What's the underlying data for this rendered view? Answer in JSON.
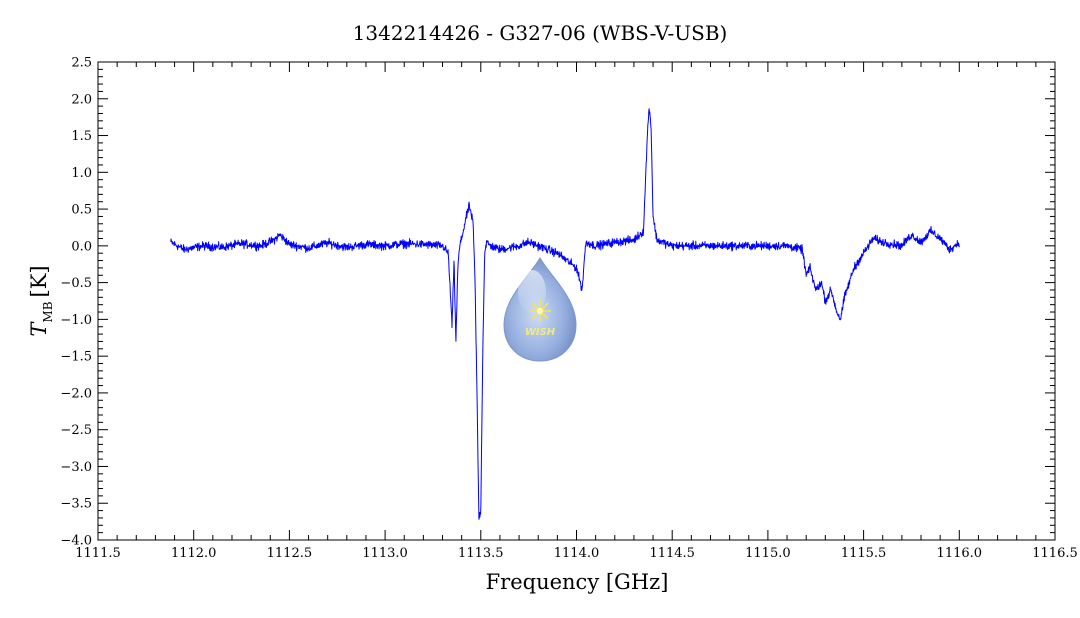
{
  "chart_data": {
    "type": "line",
    "title": "1342214426 - G327-06 (WBS-V-USB)",
    "xlabel": "Frequency [GHz]",
    "ylabel_main": "T",
    "ylabel_sub": "MB",
    "ylabel_unit": "[K]",
    "xlim": [
      1111.5,
      1116.5
    ],
    "ylim": [
      -4.0,
      2.5
    ],
    "x_ticks": [
      1111.5,
      1112.0,
      1112.5,
      1113.0,
      1113.5,
      1114.0,
      1114.5,
      1115.0,
      1115.5,
      1116.0,
      1116.5
    ],
    "x_tick_labels": [
      "1111.5",
      "1112.0",
      "1112.5",
      "1113.0",
      "1113.5",
      "1114.0",
      "1114.5",
      "1115.0",
      "1115.5",
      "1116.0",
      "1116.5"
    ],
    "y_ticks": [
      2.5,
      2.0,
      1.5,
      1.0,
      0.5,
      0.0,
      -0.5,
      -1.0,
      -1.5,
      -2.0,
      -2.5,
      -3.0,
      -3.5,
      -4.0
    ],
    "y_tick_labels": [
      "2.5",
      "2.0",
      "1.5",
      "1.0",
      "0.5",
      "0.0",
      "−0.5",
      "−1.0",
      "−1.5",
      "−2.0",
      "−2.5",
      "−3.0",
      "−3.5",
      "−4.0"
    ],
    "grid": false,
    "line_color": "#0000ff",
    "series": [
      {
        "x": [
          1111.88,
          1111.95,
          1112.05,
          1112.15,
          1112.25,
          1112.35,
          1112.42,
          1112.45,
          1112.5,
          1112.6,
          1112.7,
          1112.8,
          1112.9,
          1113.0,
          1113.1,
          1113.2,
          1113.3,
          1113.33,
          1113.35,
          1113.36,
          1113.37,
          1113.38,
          1113.39,
          1113.4,
          1113.42,
          1113.44,
          1113.46,
          1113.47,
          1113.48,
          1113.49,
          1113.5,
          1113.51,
          1113.52,
          1113.53,
          1113.55,
          1113.6,
          1113.7,
          1113.75,
          1113.8,
          1113.85,
          1113.9,
          1113.95,
          1114.0,
          1114.03,
          1114.04,
          1114.05,
          1114.1,
          1114.2,
          1114.3,
          1114.35,
          1114.37,
          1114.38,
          1114.39,
          1114.4,
          1114.42,
          1114.5,
          1114.6,
          1114.7,
          1114.8,
          1114.9,
          1115.0,
          1115.1,
          1115.18,
          1115.2,
          1115.22,
          1115.25,
          1115.28,
          1115.3,
          1115.33,
          1115.36,
          1115.38,
          1115.4,
          1115.45,
          1115.5,
          1115.55,
          1115.6,
          1115.7,
          1115.75,
          1115.8,
          1115.85,
          1115.9,
          1115.95,
          1116.0
        ],
        "values": [
          0.05,
          -0.05,
          0.0,
          -0.02,
          0.03,
          0.0,
          0.08,
          0.15,
          0.02,
          -0.03,
          0.04,
          -0.02,
          0.02,
          0.0,
          0.03,
          0.02,
          0.0,
          -0.1,
          -1.1,
          -0.2,
          -1.3,
          -0.3,
          0.0,
          0.1,
          0.35,
          0.55,
          0.3,
          -0.5,
          -2.0,
          -3.7,
          -3.6,
          -1.5,
          -0.1,
          0.05,
          0.0,
          -0.05,
          0.0,
          0.05,
          0.0,
          -0.05,
          -0.1,
          -0.2,
          -0.3,
          -0.6,
          -0.2,
          0.05,
          0.0,
          0.05,
          0.08,
          0.2,
          1.5,
          1.9,
          1.6,
          0.4,
          0.08,
          0.0,
          0.0,
          0.0,
          0.0,
          0.0,
          0.0,
          0.0,
          -0.05,
          -0.4,
          -0.3,
          -0.6,
          -0.5,
          -0.75,
          -0.6,
          -0.9,
          -1.0,
          -0.7,
          -0.3,
          -0.1,
          0.1,
          0.05,
          0.0,
          0.15,
          0.05,
          0.2,
          0.1,
          -0.05,
          0.05
        ]
      }
    ]
  },
  "logo": {
    "text": "WISH"
  }
}
